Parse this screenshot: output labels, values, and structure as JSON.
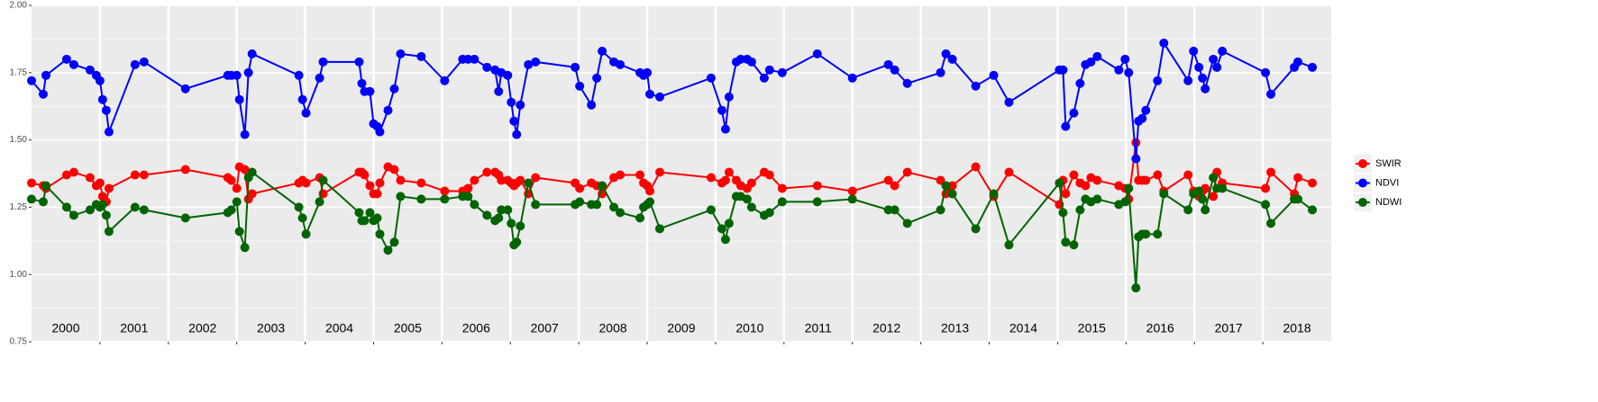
{
  "chart_data": {
    "type": "line",
    "x": [
      2000.0,
      2000.171,
      2000.211,
      2000.513,
      2000.618,
      2000.855,
      2000.947,
      2001.0,
      2001.039,
      2001.092,
      2001.132,
      2001.513,
      2001.645,
      2002.25,
      2002.868,
      2002.921,
      2003.0,
      2003.039,
      2003.118,
      2003.171,
      2003.224,
      2003.908,
      2003.961,
      2004.013,
      2004.211,
      2004.263,
      2004.789,
      2004.829,
      2004.868,
      2004.947,
      2005.0,
      2005.053,
      2005.092,
      2005.211,
      2005.303,
      2005.395,
      2005.697,
      2006.039,
      2006.303,
      2006.382,
      2006.474,
      2006.658,
      2006.776,
      2006.829,
      2006.868,
      2006.961,
      2007.013,
      2007.053,
      2007.092,
      2007.145,
      2007.263,
      2007.368,
      2007.947,
      2008.013,
      2008.184,
      2008.263,
      2008.342,
      2008.513,
      2008.605,
      2008.895,
      2008.947,
      2009.0,
      2009.039,
      2009.184,
      2009.934,
      2010.092,
      2010.145,
      2010.197,
      2010.303,
      2010.368,
      2010.461,
      2010.526,
      2010.711,
      2010.789,
      2010.974,
      2011.487,
      2012.0,
      2012.526,
      2012.618,
      2012.803,
      2013.289,
      2013.368,
      2013.461,
      2013.803,
      2014.066,
      2014.289,
      2015.026,
      2015.079,
      2015.118,
      2015.237,
      2015.329,
      2015.408,
      2015.487,
      2015.579,
      2015.895,
      2015.987,
      2016.039,
      2016.145,
      2016.184,
      2016.237,
      2016.289,
      2016.461,
      2016.553,
      2016.908,
      2016.987,
      2017.066,
      2017.118,
      2017.158,
      2017.276,
      2017.329,
      2017.408,
      2018.039,
      2018.118,
      2018.461,
      2018.513,
      2018.724
    ],
    "series": [
      {
        "name": "SWIR",
        "color": "#ff0000",
        "values": [
          1.34,
          1.33,
          1.32,
          1.37,
          1.38,
          1.36,
          1.33,
          1.34,
          1.29,
          1.27,
          1.32,
          1.37,
          1.37,
          1.39,
          1.36,
          1.35,
          1.32,
          1.4,
          1.39,
          1.28,
          1.3,
          1.34,
          1.35,
          1.34,
          1.36,
          1.3,
          1.38,
          1.38,
          1.37,
          1.33,
          1.3,
          1.3,
          1.34,
          1.4,
          1.39,
          1.35,
          1.34,
          1.31,
          1.31,
          1.32,
          1.35,
          1.38,
          1.38,
          1.37,
          1.35,
          1.35,
          1.34,
          1.33,
          1.34,
          1.35,
          1.3,
          1.36,
          1.34,
          1.32,
          1.34,
          1.33,
          1.3,
          1.36,
          1.37,
          1.37,
          1.34,
          1.33,
          1.31,
          1.38,
          1.36,
          1.34,
          1.35,
          1.38,
          1.35,
          1.33,
          1.32,
          1.34,
          1.38,
          1.37,
          1.32,
          1.33,
          1.31,
          1.35,
          1.33,
          1.38,
          1.35,
          1.3,
          1.33,
          1.4,
          1.29,
          1.38,
          1.26,
          1.35,
          1.3,
          1.37,
          1.34,
          1.33,
          1.36,
          1.35,
          1.33,
          1.32,
          1.28,
          1.49,
          1.35,
          1.35,
          1.35,
          1.37,
          1.31,
          1.37,
          1.31,
          1.29,
          1.31,
          1.32,
          1.29,
          1.38,
          1.34,
          1.32,
          1.38,
          1.3,
          1.36,
          1.34
        ]
      },
      {
        "name": "NDVI",
        "color": "#0000ff",
        "values": [
          1.72,
          1.67,
          1.74,
          1.8,
          1.78,
          1.76,
          1.74,
          1.72,
          1.65,
          1.61,
          1.53,
          1.78,
          1.79,
          1.69,
          1.74,
          1.74,
          1.74,
          1.65,
          1.52,
          1.75,
          1.82,
          1.74,
          1.65,
          1.6,
          1.73,
          1.79,
          1.79,
          1.71,
          1.68,
          1.68,
          1.56,
          1.55,
          1.53,
          1.61,
          1.69,
          1.82,
          1.81,
          1.72,
          1.8,
          1.8,
          1.8,
          1.77,
          1.76,
          1.68,
          1.75,
          1.74,
          1.64,
          1.57,
          1.52,
          1.63,
          1.78,
          1.79,
          1.77,
          1.7,
          1.63,
          1.73,
          1.83,
          1.79,
          1.78,
          1.75,
          1.74,
          1.75,
          1.67,
          1.66,
          1.73,
          1.61,
          1.54,
          1.66,
          1.79,
          1.8,
          1.8,
          1.79,
          1.73,
          1.76,
          1.75,
          1.82,
          1.73,
          1.78,
          1.76,
          1.71,
          1.75,
          1.82,
          1.8,
          1.7,
          1.74,
          1.64,
          1.76,
          1.76,
          1.55,
          1.6,
          1.71,
          1.78,
          1.79,
          1.81,
          1.76,
          1.8,
          1.75,
          1.43,
          1.57,
          1.58,
          1.61,
          1.72,
          1.86,
          1.72,
          1.83,
          1.77,
          1.73,
          1.69,
          1.8,
          1.77,
          1.83,
          1.75,
          1.67,
          1.77,
          1.79,
          1.77
        ]
      },
      {
        "name": "NDWI",
        "color": "#006400",
        "values": [
          1.28,
          1.27,
          1.33,
          1.25,
          1.22,
          1.24,
          1.26,
          1.25,
          1.26,
          1.22,
          1.16,
          1.25,
          1.24,
          1.21,
          1.23,
          1.24,
          1.27,
          1.16,
          1.1,
          1.36,
          1.38,
          1.25,
          1.21,
          1.15,
          1.27,
          1.35,
          1.23,
          1.2,
          1.2,
          1.23,
          1.2,
          1.21,
          1.15,
          1.09,
          1.12,
          1.29,
          1.28,
          1.28,
          1.29,
          1.29,
          1.26,
          1.22,
          1.2,
          1.21,
          1.24,
          1.24,
          1.19,
          1.11,
          1.12,
          1.18,
          1.34,
          1.26,
          1.26,
          1.27,
          1.26,
          1.26,
          1.33,
          1.25,
          1.23,
          1.21,
          1.25,
          1.26,
          1.27,
          1.17,
          1.24,
          1.17,
          1.13,
          1.19,
          1.29,
          1.29,
          1.28,
          1.25,
          1.22,
          1.23,
          1.27,
          1.27,
          1.28,
          1.24,
          1.24,
          1.19,
          1.24,
          1.33,
          1.3,
          1.17,
          1.3,
          1.11,
          1.34,
          1.23,
          1.12,
          1.11,
          1.24,
          1.28,
          1.27,
          1.28,
          1.26,
          1.27,
          1.32,
          0.95,
          1.14,
          1.15,
          1.15,
          1.15,
          1.3,
          1.24,
          1.3,
          1.31,
          1.28,
          1.24,
          1.36,
          1.32,
          1.32,
          1.26,
          1.19,
          1.28,
          1.28,
          1.24
        ]
      }
    ],
    "xlim": [
      2000,
      2019
    ],
    "xticks": [
      2001,
      2002,
      2003,
      2004,
      2005,
      2006,
      2007,
      2008,
      2009,
      2010,
      2011,
      2012,
      2013,
      2014,
      2015,
      2016,
      2017,
      2018
    ],
    "ylim": [
      0.75,
      2.0
    ],
    "yticks": [
      {
        "value": 0.75,
        "label": "0.75"
      },
      {
        "value": 1,
        "label": "1.00"
      },
      1.25,
      {
        "value": 1.5,
        "label": "1.50"
      },
      1.75,
      {
        "value": 2,
        "label": "2.00"
      }
    ],
    "annotations": [
      "2000",
      "2001",
      "2002",
      "2003",
      "2004",
      "2005",
      "2006",
      "2007",
      "2008",
      "2009",
      "2010",
      "2011",
      "2012",
      "2013",
      "2014",
      "2015",
      "2016",
      "2017",
      "2018"
    ],
    "grid": true,
    "legend": "right"
  }
}
